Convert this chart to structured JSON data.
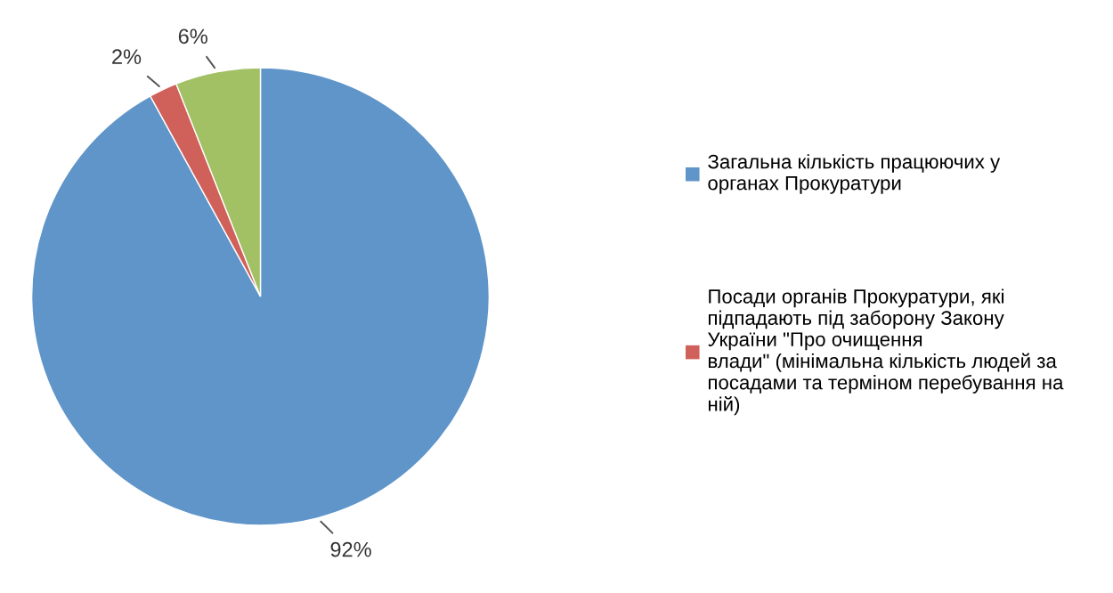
{
  "chart_data": {
    "type": "pie",
    "categories": [
      "Загальна кількість працюючих у\nорганах Прокуратури",
      "Посади органів Прокуратури, які\nпідпадають під заборону Закону\nУкраїни \"Про очищення\nвлади\" (мінімальна кількість людей за\nпосадами та терміном перебування на\nній)",
      null
    ],
    "values": [
      92,
      2,
      6
    ],
    "colors": [
      "#6095c9",
      "#d0605a",
      "#a2c064"
    ],
    "value_labels": [
      "92%",
      "2%",
      "6%"
    ],
    "legend": "right"
  }
}
